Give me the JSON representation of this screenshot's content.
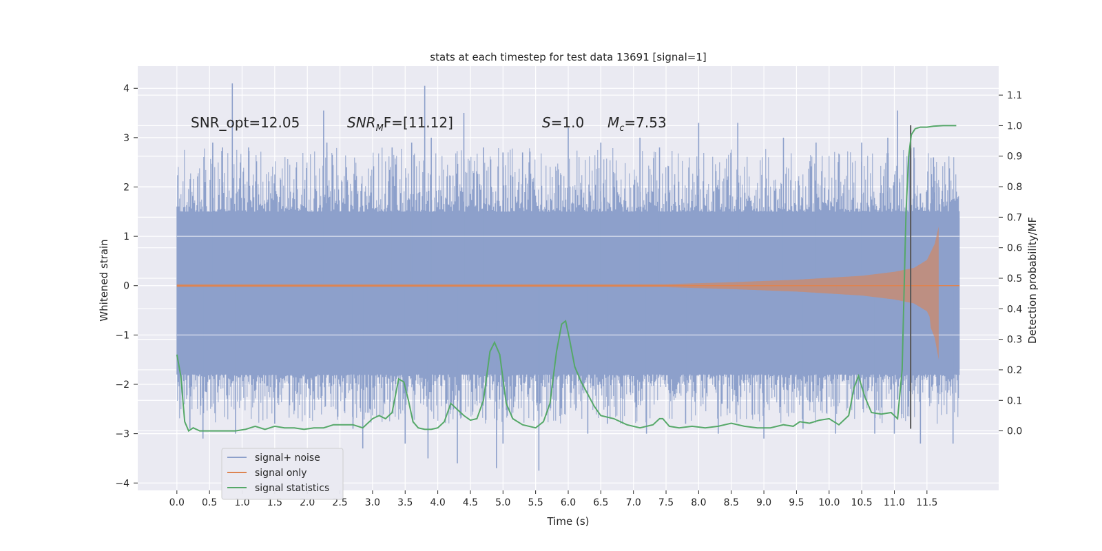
{
  "chart_data": {
    "type": "line",
    "title": "stats at each timestep for test data 13691 [signal=1]",
    "xlabel": "Time (s)",
    "ylabel": "Whitened strain",
    "y2label": "Detection probability/MF",
    "xlim": [
      -0.6,
      12.6
    ],
    "ylim": [
      -4.15,
      4.45
    ],
    "y2lim": [
      -0.195,
      1.195
    ],
    "x_ticks": [
      0.0,
      0.5,
      1.0,
      1.5,
      2.0,
      2.5,
      3.0,
      3.5,
      4.0,
      4.5,
      5.0,
      5.5,
      6.0,
      6.5,
      7.0,
      7.5,
      8.0,
      8.5,
      9.0,
      9.5,
      10.0,
      10.5,
      11.0,
      11.5
    ],
    "x_tick_labels": [
      "0.0",
      "0.5",
      "1.0",
      "1.5",
      "2.0",
      "2.5",
      "3.0",
      "3.5",
      "4.0",
      "4.5",
      "5.0",
      "5.5",
      "6.0",
      "6.5",
      "7.0",
      "7.5",
      "8.0",
      "8.5",
      "9.0",
      "9.5",
      "10.0",
      "10.5",
      "11.0",
      "11.5"
    ],
    "y_ticks": [
      -4,
      -3,
      -2,
      -1,
      0,
      1,
      2,
      3,
      4
    ],
    "y_tick_labels": [
      "−4",
      "−3",
      "−2",
      "−1",
      "0",
      "1",
      "2",
      "3",
      "4"
    ],
    "y2_ticks": [
      0.0,
      0.1,
      0.2,
      0.3,
      0.4,
      0.5,
      0.6,
      0.7,
      0.8,
      0.9,
      1.0,
      1.1
    ],
    "y2_tick_labels": [
      "0.0",
      "0.1",
      "0.2",
      "0.3",
      "0.4",
      "0.5",
      "0.6",
      "0.7",
      "0.8",
      "0.9",
      "1.0",
      "1.1"
    ],
    "annotations": {
      "snr_opt": "SNR_opt=12.05",
      "snr_mf_symbol": "SNR",
      "snr_mf_sub": "M",
      "snr_mf_rest": "F=[11.12]",
      "s_symbol": "S",
      "s_rest": "=1.0",
      "mc_symbol": "M",
      "mc_sub": "c",
      "mc_rest": "=7.53"
    },
    "vertical_marker_x": 11.25,
    "colors": {
      "noise": "#8da0cb",
      "signal": "#dd8452",
      "stats": "#55a868",
      "marker": "#555555",
      "background": "#eaeaf2",
      "grid": "#ffffff"
    },
    "series": [
      {
        "name": "signal+ noise",
        "kind": "noise",
        "x_start": 0.0,
        "x_end": 12.0,
        "band_low": -1.7,
        "band_high": 1.4,
        "spikes_up": [
          [
            0.85,
            4.1
          ],
          [
            0.55,
            2.9
          ],
          [
            0.7,
            2.8
          ],
          [
            1.1,
            2.8
          ],
          [
            2.25,
            3.55
          ],
          [
            2.3,
            2.9
          ],
          [
            2.6,
            2.4
          ],
          [
            3.3,
            2.8
          ],
          [
            3.6,
            2.9
          ],
          [
            3.8,
            4.05
          ],
          [
            3.9,
            3.0
          ],
          [
            4.4,
            3.5
          ],
          [
            4.7,
            2.8
          ],
          [
            5.0,
            2.7
          ],
          [
            5.4,
            2.5
          ],
          [
            5.3,
            2.7
          ],
          [
            6.0,
            3.2
          ],
          [
            6.5,
            2.9
          ],
          [
            7.1,
            3.0
          ],
          [
            7.4,
            2.8
          ],
          [
            8.0,
            3.3
          ],
          [
            8.6,
            3.3
          ],
          [
            9.3,
            3.0
          ],
          [
            9.8,
            2.9
          ],
          [
            10.5,
            2.9
          ],
          [
            10.9,
            3.0
          ],
          [
            11.05,
            3.55
          ],
          [
            11.3,
            2.8
          ],
          [
            11.6,
            2.6
          ]
        ],
        "spikes_down": [
          [
            0.2,
            -2.9
          ],
          [
            0.4,
            -3.1
          ],
          [
            0.9,
            -3.0
          ],
          [
            1.5,
            -2.8
          ],
          [
            2.7,
            -2.9
          ],
          [
            2.85,
            -3.3
          ],
          [
            3.5,
            -3.2
          ],
          [
            3.85,
            -3.5
          ],
          [
            4.3,
            -3.6
          ],
          [
            4.9,
            -3.7
          ],
          [
            5.0,
            -3.2
          ],
          [
            5.55,
            -3.75
          ],
          [
            6.3,
            -3.0
          ],
          [
            6.6,
            -2.8
          ],
          [
            7.2,
            -3.0
          ],
          [
            7.8,
            -2.8
          ],
          [
            8.3,
            -3.0
          ],
          [
            9.0,
            -3.1
          ],
          [
            9.6,
            -2.9
          ],
          [
            10.1,
            -3.0
          ],
          [
            10.7,
            -3.0
          ],
          [
            11.0,
            -3.0
          ],
          [
            11.4,
            -3.2
          ],
          [
            11.9,
            -3.2
          ]
        ]
      },
      {
        "name": "signal only",
        "kind": "chirp",
        "x_start": 0.0,
        "x_end": 12.0,
        "merger_x": 11.68,
        "envelope": [
          [
            0.0,
            0.03
          ],
          [
            7.5,
            0.03
          ],
          [
            8.5,
            0.07
          ],
          [
            9.5,
            0.12
          ],
          [
            10.5,
            0.2
          ],
          [
            11.0,
            0.28
          ],
          [
            11.3,
            0.36
          ],
          [
            11.5,
            0.52
          ],
          [
            11.62,
            0.85
          ],
          [
            11.68,
            1.2
          ],
          [
            11.69,
            0.0
          ],
          [
            12.0,
            0.0
          ]
        ],
        "envelope_low_at_merger": -1.5
      },
      {
        "name": "signal statistics",
        "kind": "line",
        "axis": "y2",
        "x": [
          0.0,
          0.06,
          0.12,
          0.18,
          0.25,
          0.35,
          0.45,
          0.55,
          0.7,
          0.9,
          1.05,
          1.2,
          1.35,
          1.5,
          1.65,
          1.8,
          1.95,
          2.1,
          2.25,
          2.4,
          2.55,
          2.7,
          2.85,
          3.0,
          3.1,
          3.2,
          3.3,
          3.4,
          3.48,
          3.55,
          3.62,
          3.7,
          3.8,
          3.9,
          4.0,
          4.1,
          4.2,
          4.25,
          4.3,
          4.4,
          4.5,
          4.6,
          4.7,
          4.8,
          4.87,
          4.95,
          5.05,
          5.15,
          5.3,
          5.5,
          5.62,
          5.72,
          5.82,
          5.9,
          5.96,
          6.02,
          6.1,
          6.2,
          6.3,
          6.4,
          6.5,
          6.7,
          6.9,
          7.1,
          7.3,
          7.4,
          7.45,
          7.55,
          7.7,
          7.9,
          8.1,
          8.3,
          8.5,
          8.7,
          8.9,
          9.1,
          9.3,
          9.45,
          9.55,
          9.7,
          9.85,
          10.0,
          10.15,
          10.3,
          10.38,
          10.45,
          10.55,
          10.65,
          10.8,
          10.95,
          11.05,
          11.12,
          11.18,
          11.22,
          11.26,
          11.32,
          11.4,
          11.5,
          11.6,
          11.75,
          11.9,
          11.95
        ],
        "y": [
          0.25,
          0.18,
          0.03,
          0.0,
          0.01,
          0.0,
          0.0,
          0.0,
          0.0,
          0.0,
          0.005,
          0.015,
          0.005,
          0.015,
          0.01,
          0.01,
          0.005,
          0.01,
          0.01,
          0.02,
          0.02,
          0.02,
          0.01,
          0.04,
          0.05,
          0.04,
          0.06,
          0.17,
          0.16,
          0.1,
          0.03,
          0.01,
          0.005,
          0.005,
          0.01,
          0.03,
          0.09,
          0.08,
          0.07,
          0.05,
          0.035,
          0.04,
          0.1,
          0.26,
          0.29,
          0.25,
          0.09,
          0.04,
          0.02,
          0.01,
          0.03,
          0.09,
          0.26,
          0.35,
          0.36,
          0.3,
          0.21,
          0.16,
          0.12,
          0.08,
          0.05,
          0.04,
          0.02,
          0.01,
          0.02,
          0.04,
          0.04,
          0.015,
          0.01,
          0.015,
          0.01,
          0.015,
          0.025,
          0.015,
          0.01,
          0.01,
          0.02,
          0.015,
          0.03,
          0.025,
          0.035,
          0.04,
          0.02,
          0.05,
          0.14,
          0.18,
          0.11,
          0.06,
          0.055,
          0.06,
          0.04,
          0.2,
          0.72,
          0.9,
          0.97,
          0.99,
          0.995,
          0.995,
          0.998,
          1.0,
          1.0,
          1.0
        ]
      }
    ],
    "legend": [
      "signal+ noise",
      "signal only",
      "signal statistics"
    ],
    "legend_position": "lower-left"
  }
}
